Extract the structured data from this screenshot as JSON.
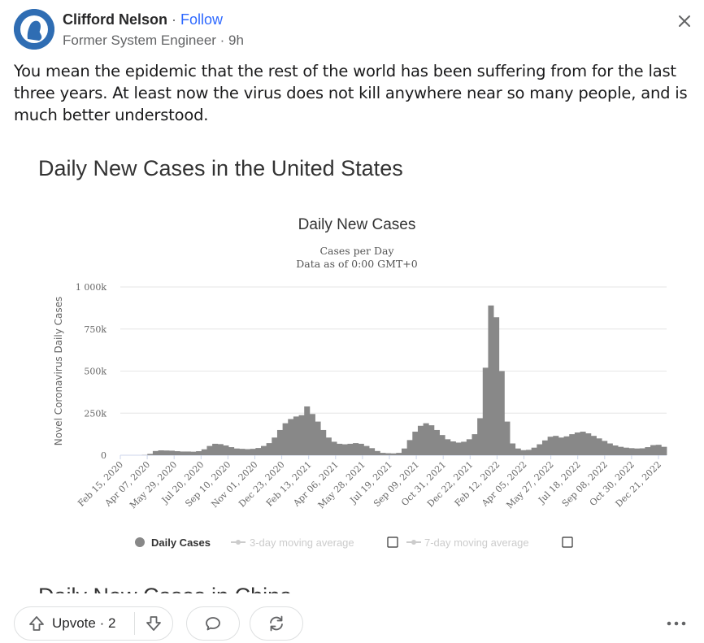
{
  "post": {
    "author_name": "Clifford Nelson",
    "separator": "·",
    "follow_label": "Follow",
    "credential": "Former System Engineer · 9h",
    "text": "You mean the epidemic that the rest of the world has been suffering from for the last three years. At least now the virus does not kill anywhere near so many people, and is much better understood."
  },
  "embed": {
    "title": "Daily New Cases in the United States",
    "next_title": "Daily New Cases in China"
  },
  "chart_data": {
    "type": "bar",
    "title": "Daily New Cases",
    "subtitle_1": "Cases per Day",
    "subtitle_2": "Data as of 0:00 GMT+0",
    "ylabel": "Novel Coronavirus Daily Cases",
    "ylim": [
      0,
      1000000
    ],
    "y_ticks": [
      0,
      250000,
      500000,
      750000,
      1000000
    ],
    "y_tick_labels": [
      "0",
      "250k",
      "500k",
      "750k",
      "1 000k"
    ],
    "x_tick_labels": [
      "Feb 15, 2020",
      "Apr 07, 2020",
      "May 29, 2020",
      "Jul 20, 2020",
      "Sep 10, 2020",
      "Nov 01, 2020",
      "Dec 23, 2020",
      "Feb 13, 2021",
      "Apr 06, 2021",
      "May 28, 2021",
      "Jul 19, 2021",
      "Sep 09, 2021",
      "Oct 31, 2021",
      "Dec 22, 2021",
      "Feb 12, 2022",
      "Apr 05, 2022",
      "May 27, 2022",
      "Jul 18, 2022",
      "Sep 08, 2022",
      "Oct 30, 2022",
      "Dec 21, 2022"
    ],
    "series": [
      {
        "name": "Daily Cases",
        "values": [
          0,
          0,
          0,
          0,
          1000,
          8000,
          25000,
          29000,
          28000,
          27000,
          24000,
          22000,
          22000,
          21000,
          24000,
          35000,
          55000,
          68000,
          66000,
          58000,
          48000,
          40000,
          38000,
          36000,
          38000,
          43000,
          55000,
          72000,
          105000,
          150000,
          190000,
          215000,
          230000,
          238000,
          290000,
          245000,
          200000,
          150000,
          105000,
          80000,
          68000,
          65000,
          68000,
          72000,
          68000,
          55000,
          42000,
          25000,
          14000,
          12000,
          11000,
          14000,
          40000,
          90000,
          140000,
          175000,
          190000,
          178000,
          150000,
          120000,
          95000,
          82000,
          75000,
          80000,
          95000,
          125000,
          220000,
          520000,
          890000,
          820000,
          500000,
          200000,
          70000,
          40000,
          30000,
          32000,
          45000,
          65000,
          88000,
          110000,
          115000,
          105000,
          112000,
          125000,
          135000,
          140000,
          130000,
          115000,
          100000,
          85000,
          70000,
          58000,
          50000,
          45000,
          42000,
          40000,
          41000,
          48000,
          60000,
          62000,
          50000
        ]
      }
    ],
    "legend": [
      "Daily Cases",
      "3-day moving average",
      "7-day moving average"
    ],
    "legend_position": "bottom",
    "grid": true,
    "colors": {
      "bars": "#888888",
      "grid": "#e6e6e6",
      "legend_inactive": "#cccccc"
    }
  },
  "actions": {
    "upvote_label": "Upvote · 2"
  },
  "icons": [
    "avatar-silhouette",
    "close-icon",
    "upvote-arrow-icon",
    "downvote-arrow-icon",
    "comment-icon",
    "share-icon",
    "more-icon"
  ]
}
